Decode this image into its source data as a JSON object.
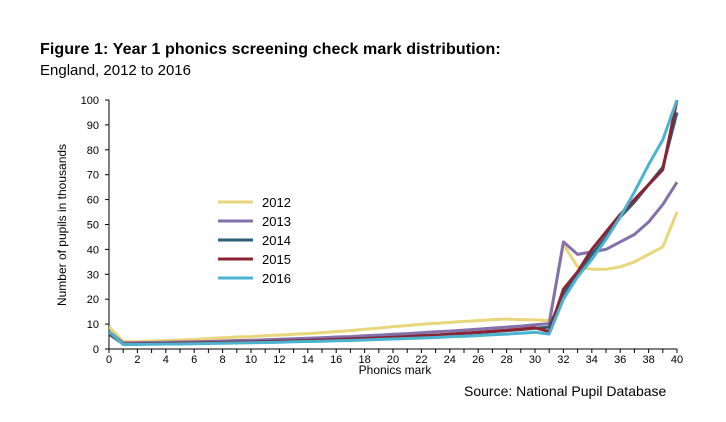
{
  "header": {
    "title": "Figure 1: Year 1 phonics screening check mark distribution:",
    "subtitle": "England, 2012 to 2016"
  },
  "footer": {
    "source": "Source: National Pupil Database"
  },
  "chart_data": {
    "type": "line",
    "xlabel": "Phonics mark",
    "ylabel": "Number of pupils in thousands",
    "xlim": [
      0,
      40
    ],
    "ylim": [
      0,
      100
    ],
    "xticks": [
      0,
      2,
      4,
      6,
      8,
      10,
      12,
      14,
      16,
      18,
      20,
      22,
      24,
      26,
      28,
      30,
      32,
      34,
      36,
      38,
      40
    ],
    "yticks": [
      0,
      10,
      20,
      30,
      40,
      50,
      60,
      70,
      80,
      90,
      100
    ],
    "grid": false,
    "legend_position": "center-left",
    "x": [
      0,
      1,
      2,
      3,
      4,
      5,
      6,
      7,
      8,
      9,
      10,
      11,
      12,
      13,
      14,
      15,
      16,
      17,
      18,
      19,
      20,
      21,
      22,
      23,
      24,
      25,
      26,
      27,
      28,
      29,
      30,
      31,
      32,
      33,
      34,
      35,
      36,
      37,
      38,
      39,
      40
    ],
    "series": [
      {
        "name": "2012",
        "color": "#e9d57a",
        "values": [
          9,
          3,
          3,
          3.2,
          3.4,
          3.6,
          3.8,
          4.2,
          4.5,
          4.8,
          5,
          5.3,
          5.6,
          5.9,
          6.2,
          6.6,
          7,
          7.4,
          7.9,
          8.4,
          9,
          9.4,
          9.9,
          10.3,
          10.7,
          11.1,
          11.4,
          11.8,
          12,
          11.8,
          11.7,
          11.4,
          42,
          33,
          32,
          32,
          33,
          35,
          38,
          41,
          55
        ]
      },
      {
        "name": "2013",
        "color": "#8470aa",
        "values": [
          7,
          2.4,
          2.5,
          2.6,
          2.7,
          2.8,
          2.9,
          3,
          3.2,
          3.4,
          3.5,
          3.7,
          3.9,
          4.1,
          4.3,
          4.5,
          4.8,
          5,
          5.3,
          5.6,
          5.9,
          6.2,
          6.5,
          6.9,
          7.2,
          7.6,
          8,
          8.4,
          8.8,
          9.2,
          9.7,
          10.2,
          43,
          38,
          39,
          40,
          43,
          46,
          51,
          58,
          67
        ]
      },
      {
        "name": "2014",
        "color": "#2e5d78",
        "values": [
          6,
          2,
          2,
          2.1,
          2.2,
          2.3,
          2.4,
          2.5,
          2.6,
          2.7,
          2.8,
          3,
          3.1,
          3.3,
          3.4,
          3.6,
          3.8,
          4,
          4.2,
          4.5,
          4.7,
          5,
          5.3,
          5.6,
          5.9,
          6.3,
          6.6,
          7,
          7.4,
          7.8,
          8.3,
          8.8,
          22,
          30,
          38,
          45,
          53,
          59,
          66,
          73,
          95
        ]
      },
      {
        "name": "2015",
        "color": "#8b2332",
        "values": [
          6.5,
          2,
          2,
          2.1,
          2.2,
          2.3,
          2.4,
          2.5,
          2.6,
          2.7,
          2.8,
          2.9,
          3.1,
          3.2,
          3.4,
          3.6,
          3.8,
          4,
          4.2,
          4.4,
          4.7,
          5,
          5.3,
          5.6,
          5.9,
          6.3,
          6.7,
          7.1,
          7.5,
          8,
          8.5,
          7,
          24,
          31,
          40,
          47,
          54,
          60,
          66,
          72,
          100
        ]
      },
      {
        "name": "2016",
        "color": "#4ab3d0",
        "values": [
          7,
          1.8,
          1.8,
          1.9,
          2,
          2,
          2.1,
          2.2,
          2.3,
          2.4,
          2.5,
          2.6,
          2.7,
          2.9,
          3,
          3.1,
          3.3,
          3.4,
          3.6,
          3.8,
          4,
          4.2,
          4.4,
          4.6,
          4.9,
          5.1,
          5.4,
          5.7,
          6,
          6.3,
          6.7,
          6,
          20,
          29,
          36,
          44,
          53,
          63,
          74,
          84,
          100
        ]
      }
    ]
  }
}
